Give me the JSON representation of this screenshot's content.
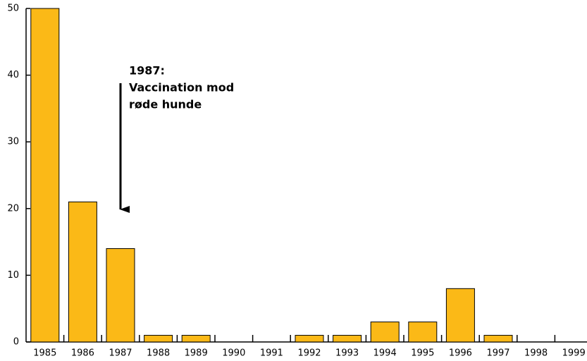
{
  "chart_data": {
    "type": "bar",
    "categories": [
      "1985",
      "1986",
      "1987",
      "1988",
      "1989",
      "1990",
      "1991",
      "1992",
      "1993",
      "1994",
      "1995",
      "1996",
      "1997",
      "1998",
      "1999"
    ],
    "values": [
      50,
      21,
      14,
      1,
      1,
      0,
      0,
      1,
      1,
      3,
      3,
      8,
      1,
      0,
      0
    ],
    "color": "#fbb917",
    "ylim": [
      0,
      50
    ],
    "yticks": [
      0,
      10,
      20,
      30,
      40,
      50
    ],
    "annotation": [
      "1987:",
      "Vaccination mod",
      "røde hunde"
    ]
  }
}
